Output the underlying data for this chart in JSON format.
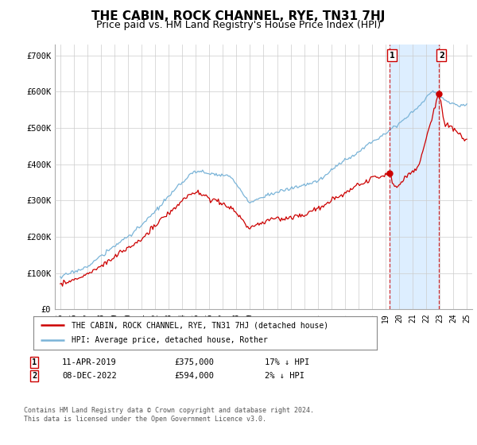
{
  "title": "THE CABIN, ROCK CHANNEL, RYE, TN31 7HJ",
  "subtitle": "Price paid vs. HM Land Registry's House Price Index (HPI)",
  "title_fontsize": 11,
  "subtitle_fontsize": 9,
  "ylabel_ticks": [
    "£0",
    "£100K",
    "£200K",
    "£300K",
    "£400K",
    "£500K",
    "£600K",
    "£700K"
  ],
  "ytick_values": [
    0,
    100000,
    200000,
    300000,
    400000,
    500000,
    600000,
    700000
  ],
  "ylim": [
    0,
    730000
  ],
  "xlim_start": 1994.6,
  "xlim_end": 2025.4,
  "hpi_color": "#7ab4d8",
  "price_color": "#cc0000",
  "shade_color": "#ddeeff",
  "marker1_x": 2019.27,
  "marker1_y": 375000,
  "marker2_x": 2022.92,
  "marker2_y": 594000,
  "annotation1_label": "1",
  "annotation2_label": "2",
  "legend_entry1": "THE CABIN, ROCK CHANNEL, RYE, TN31 7HJ (detached house)",
  "legend_entry2": "HPI: Average price, detached house, Rother",
  "table_row1": [
    "1",
    "11-APR-2019",
    "£375,000",
    "17% ↓ HPI"
  ],
  "table_row2": [
    "2",
    "08-DEC-2022",
    "£594,000",
    "2% ↓ HPI"
  ],
  "footer": "Contains HM Land Registry data © Crown copyright and database right 2024.\nThis data is licensed under the Open Government Licence v3.0.",
  "bg_color": "#ffffff",
  "grid_color": "#cccccc"
}
